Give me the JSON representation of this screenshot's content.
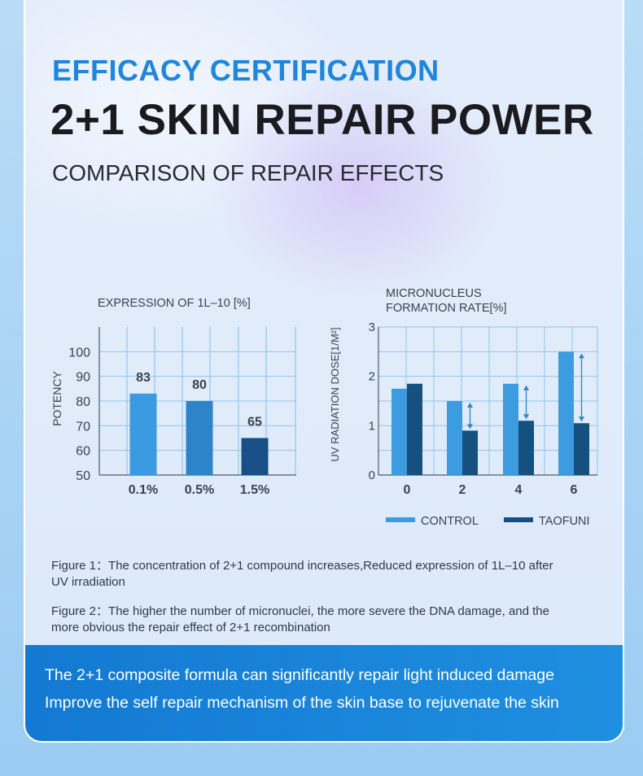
{
  "header": {
    "eyebrow": "EFFICACY CERTIFICATION",
    "title": "2+1 SKIN REPAIR POWER",
    "subtitle": "COMPARISON OF REPAIR EFFECTS"
  },
  "chart_data": [
    {
      "type": "bar",
      "title": "EXPRESSION OF 1L–10 [%]",
      "ylabel": "POTENCY",
      "xlabel": "",
      "categories": [
        "0.1%",
        "0.5%",
        "1.5%"
      ],
      "values": [
        83,
        80,
        65
      ],
      "ylim": [
        50,
        110
      ],
      "yticks": [
        "50",
        "60",
        "70",
        "80",
        "90",
        "100"
      ],
      "grid": true,
      "colors": [
        "#3a9be0",
        "#2d84c9",
        "#174f86"
      ]
    },
    {
      "type": "bar",
      "title_line1": "MICRONUCLEUS",
      "title_line2": "FORMATION RATE[%]",
      "ylabel": "UV RADIATION DOSE[1/M²]",
      "xlabel": "",
      "categories": [
        "0",
        "2",
        "4",
        "6"
      ],
      "ylim": [
        0,
        3
      ],
      "yticks": [
        "0",
        "1",
        "2",
        "3"
      ],
      "grid": true,
      "series": [
        {
          "name": "CONTROL",
          "values": [
            1.75,
            1.5,
            1.85,
            2.5
          ],
          "color": "#3d9be0"
        },
        {
          "name": "TAOFUNI",
          "values": [
            1.85,
            0.9,
            1.1,
            1.05
          ],
          "color": "#16507f"
        }
      ],
      "legend": "bottom",
      "annotations": "double-headed arrows show reduction from CONTROL to TAOFUNI at doses 2, 4, 6"
    }
  ],
  "captions": {
    "figure1": "Figure 1：The concentration of 2+1 compound increases,Reduced expression of 1L–10 after UV irradiation",
    "figure2": "Figure 2：The higher the number of micronuclei, the more severe the DNA damage, and the more obvious the repair effect of 2+1 recombination"
  },
  "banner": {
    "line1": "The 2+1 composite formula can significantly repair light induced damage",
    "line2": "Improve the self repair mechanism of the skin base to rejuvenate the skin"
  },
  "colors": {
    "accent": "#1f86d9",
    "banner": "#1a85da",
    "control": "#3d9be0",
    "taofuni": "#16507f"
  }
}
